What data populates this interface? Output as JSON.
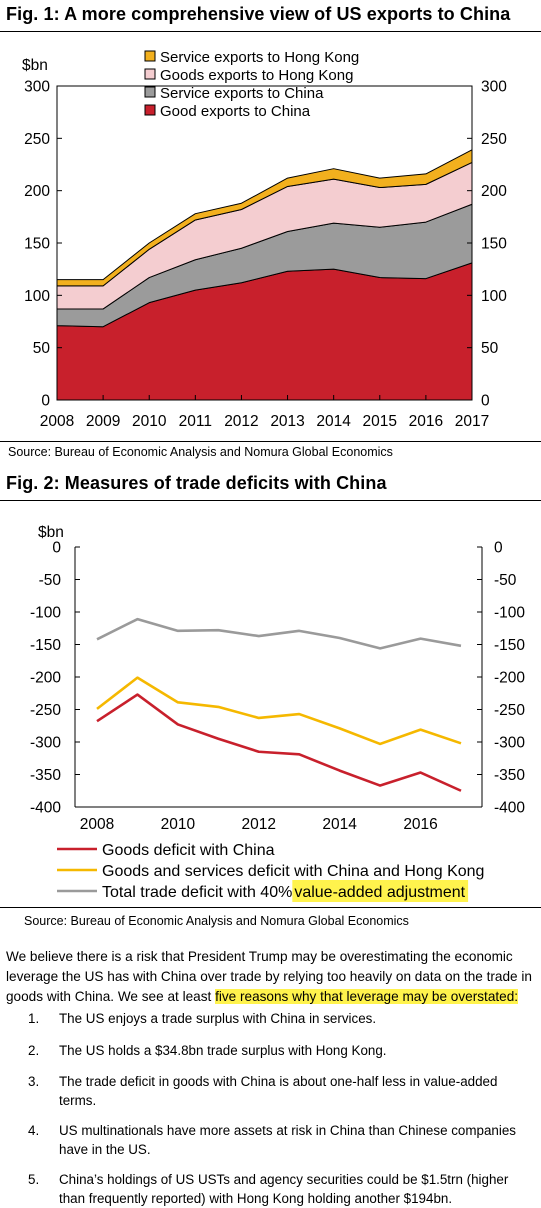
{
  "fig1": {
    "title": "Fig. 1: A more comprehensive view of US exports to China",
    "source": "Source: Bureau of Economic Analysis and Nomura Global Economics"
  },
  "fig2": {
    "title": "Fig. 2: Measures of trade deficits with China",
    "source": "Source: Bureau of Economic Analysis and Nomura Global Economics"
  },
  "chart_data": [
    {
      "type": "area",
      "stacked": true,
      "title": "Fig. 1: A more comprehensive view of US exports to China",
      "ylabel": "$bn",
      "x": [
        2008,
        2009,
        2010,
        2011,
        2012,
        2013,
        2014,
        2015,
        2016,
        2017
      ],
      "ylim": [
        0,
        300
      ],
      "yticks": [
        0,
        50,
        100,
        150,
        200,
        250,
        300
      ],
      "legend_position": "top-left",
      "grid": false,
      "series": [
        {
          "name": "Good exports to China",
          "color": "#c8202c",
          "values": [
            71,
            70,
            93,
            105,
            112,
            123,
            125,
            117,
            116,
            131
          ]
        },
        {
          "name": "Service exports to China",
          "color": "#9b9b9b",
          "values": [
            16,
            17,
            24,
            29,
            33,
            38,
            44,
            48,
            54,
            56
          ]
        },
        {
          "name": "Goods exports to Hong Kong",
          "color": "#f4cdd0",
          "values": [
            22,
            22,
            27,
            38,
            37,
            43,
            42,
            38,
            36,
            40
          ]
        },
        {
          "name": "Service exports to Hong Kong",
          "color": "#f2b01e",
          "values": [
            6,
            6,
            6,
            6,
            6,
            8,
            10,
            9,
            10,
            12
          ]
        }
      ]
    },
    {
      "type": "line",
      "title": "Fig. 2: Measures of trade deficits with China",
      "ylabel": "$bn",
      "x": [
        2008,
        2009,
        2010,
        2011,
        2012,
        2013,
        2014,
        2015,
        2016,
        2017
      ],
      "xticks": [
        2008,
        2010,
        2012,
        2014,
        2016
      ],
      "ylim": [
        -400,
        0
      ],
      "yticks": [
        0,
        -50,
        -100,
        -150,
        -200,
        -250,
        -300,
        -350,
        -400
      ],
      "legend_position": "bottom",
      "grid": false,
      "series": [
        {
          "name": "Goods deficit with China",
          "color": "#c8202c",
          "values": [
            -268,
            -227,
            -273,
            -295,
            -315,
            -319,
            -344,
            -367,
            -347,
            -375
          ]
        },
        {
          "name": "Goods and services deficit with China and Hong Kong",
          "color": "#f5b800",
          "values": [
            -249,
            -201,
            -239,
            -246,
            -263,
            -257,
            -279,
            -303,
            -281,
            -302
          ]
        },
        {
          "name_before_highlight": "Total trade deficit with 40% ",
          "name_highlight": "value-added adjustment",
          "color": "#9a9a9a",
          "values": [
            -142,
            -111,
            -129,
            -128,
            -137,
            -129,
            -140,
            -156,
            -141,
            -152
          ]
        }
      ]
    }
  ],
  "paragraph": {
    "text": "We believe there is a risk that President Trump may be overestimating the economic leverage the US has with China over trade by relying too heavily on data on the trade in goods with China. We see at least ",
    "highlight": "five reasons why that leverage may be overstated:"
  },
  "reasons": [
    {
      "num": "1.",
      "text": "The US enjoys a trade surplus with China in services."
    },
    {
      "num": "2.",
      "text": "The US holds a $34.8bn trade surplus with Hong Kong."
    },
    {
      "num": "3.",
      "text": "The trade deficit in goods with China is about one-half less in value-added terms."
    },
    {
      "num": "4.",
      "text": "US multinationals have more assets at risk in China than Chinese companies have in the US."
    },
    {
      "num": "5.",
      "text": "China’s holdings of US USTs and agency securities could be $1.5trn (higher than frequently reported) with Hong Kong holding another $194bn."
    }
  ]
}
